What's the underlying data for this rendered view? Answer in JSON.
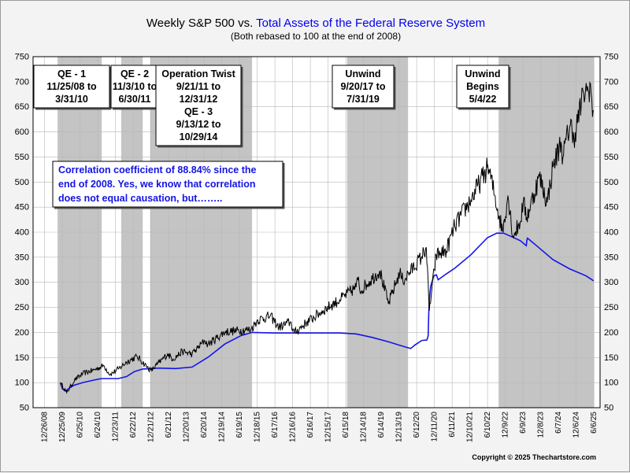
{
  "title": {
    "part1": "Weekly S&P 500 vs. ",
    "part2": "Total Assets of the Federal Reserve System"
  },
  "subtitle": "(Both rebased to 100 at the end of 2008)",
  "copyright": "Copyright © 2025 Thechartstore.com",
  "colors": {
    "sp500": "#000000",
    "fed": "#1414e6",
    "shade": "#c4c4c4",
    "plot_bg": "#ffffff"
  },
  "chart_data": {
    "type": "line",
    "title": "Weekly S&P 500 vs. Total Assets of the Federal Reserve System",
    "subtitle": "(Both rebased to 100 at the end of 2008)",
    "ylim": [
      50,
      750
    ],
    "yticks": [
      50,
      100,
      150,
      200,
      250,
      300,
      350,
      400,
      450,
      500,
      550,
      600,
      650,
      700,
      750
    ],
    "xlim": [
      "2008-02-26",
      "2025-06-06"
    ],
    "xtick_labels": [
      "12/26/08",
      "12/25/09",
      "6/25/10",
      "6/24/10",
      "12/23/11",
      "6/22/12",
      "12/21/12",
      "6/21/12",
      "12/20/13",
      "6/20/14",
      "12/19/14",
      "6/19/15",
      "12/18/15",
      "6/17/16",
      "12/16/16",
      "6/16/17",
      "12/15/17",
      "6/15/18",
      "12/14/18",
      "6/14/19",
      "12/13/19",
      "6/12/20",
      "12/11/20",
      "6/11/21",
      "12/10/21",
      "6/10/22",
      "12/9/22",
      "6/9/23",
      "12/8/23",
      "6/7/24",
      "12/6/24",
      "6/6/25"
    ],
    "shaded_periods": [
      {
        "label_lines": [
          "QE - 1",
          "11/25/08 to",
          "3/31/10"
        ],
        "start": "2008-11-25",
        "end": "2010-03-31"
      },
      {
        "label_lines": [
          "QE - 2",
          "11/3/10 to",
          "6/30/11"
        ],
        "start": "2010-11-03",
        "end": "2011-06-30"
      },
      {
        "label_lines": [
          "Operation Twist",
          "9/21/11 to",
          "12/31/12",
          "QE - 3",
          "9/13/12 to",
          "10/29/14"
        ],
        "start": "2011-09-21",
        "end": "2014-10-29"
      },
      {
        "label_lines": [
          "Unwind",
          "9/20/17 to",
          "7/31/19"
        ],
        "start": "2017-09-20",
        "end": "2019-07-31"
      },
      {
        "label_lines": [
          "Unwind",
          "Begins",
          "5/4/22"
        ],
        "start": "2022-05-04",
        "end": "2025-03-31"
      }
    ],
    "annotation": [
      "Correlation coefficient of 88.84% since the",
      "end of 2008. Yes, we know that correlation",
      "does not equal causation, but…….."
    ],
    "series": [
      {
        "name": "S&P 500",
        "points": [
          [
            "2008-12-26",
            100
          ],
          [
            "2009-03-06",
            80
          ],
          [
            "2009-06-01",
            105
          ],
          [
            "2009-09-01",
            118
          ],
          [
            "2009-12-31",
            125
          ],
          [
            "2010-04-23",
            134
          ],
          [
            "2010-07-02",
            116
          ],
          [
            "2010-10-01",
            127
          ],
          [
            "2010-12-31",
            141
          ],
          [
            "2011-04-29",
            152
          ],
          [
            "2011-08-19",
            131
          ],
          [
            "2011-10-03",
            124
          ],
          [
            "2011-12-30",
            140
          ],
          [
            "2012-04-02",
            157
          ],
          [
            "2012-06-01",
            147
          ],
          [
            "2012-09-14",
            162
          ],
          [
            "2012-12-31",
            157
          ],
          [
            "2013-05-20",
            184
          ],
          [
            "2013-06-24",
            176
          ],
          [
            "2013-12-31",
            201
          ],
          [
            "2014-04-11",
            203
          ],
          [
            "2014-10-15",
            206
          ],
          [
            "2014-12-31",
            225
          ],
          [
            "2015-05-20",
            233
          ],
          [
            "2015-08-25",
            210
          ],
          [
            "2015-12-31",
            221
          ],
          [
            "2016-02-11",
            199
          ],
          [
            "2016-06-27",
            220
          ],
          [
            "2016-12-30",
            244
          ],
          [
            "2017-06-30",
            265
          ],
          [
            "2017-12-29",
            290
          ],
          [
            "2018-01-26",
            311
          ],
          [
            "2018-02-09",
            283
          ],
          [
            "2018-09-21",
            323
          ],
          [
            "2018-12-24",
            257
          ],
          [
            "2019-04-30",
            320
          ],
          [
            "2019-06-03",
            303
          ],
          [
            "2019-12-31",
            351
          ],
          [
            "2020-02-19",
            370
          ],
          [
            "2020-03-23",
            243
          ],
          [
            "2020-06-08",
            354
          ],
          [
            "2020-09-30",
            363
          ],
          [
            "2020-12-31",
            412
          ],
          [
            "2021-06-30",
            465
          ],
          [
            "2021-12-31",
            528
          ],
          [
            "2022-01-03",
            535
          ],
          [
            "2022-06-17",
            402
          ],
          [
            "2022-08-16",
            473
          ],
          [
            "2022-10-12",
            392
          ],
          [
            "2022-12-30",
            420
          ],
          [
            "2023-02-02",
            460
          ],
          [
            "2023-03-13",
            430
          ],
          [
            "2023-07-31",
            511
          ],
          [
            "2023-10-27",
            459
          ],
          [
            "2023-12-29",
            530
          ],
          [
            "2024-03-28",
            580
          ],
          [
            "2024-04-19",
            550
          ],
          [
            "2024-07-16",
            625
          ],
          [
            "2024-08-05",
            578
          ],
          [
            "2024-12-06",
            677
          ],
          [
            "2025-01-24",
            683
          ],
          [
            "2025-02-19",
            696
          ],
          [
            "2025-03-14",
            630
          ],
          [
            "2025-03-28",
            642
          ]
        ]
      },
      {
        "name": "Total Assets of the Federal Reserve System",
        "points": [
          [
            "2008-12-26",
            100
          ],
          [
            "2009-01-16",
            88
          ],
          [
            "2009-02-20",
            83
          ],
          [
            "2009-04-10",
            90
          ],
          [
            "2009-06-01",
            95
          ],
          [
            "2009-09-01",
            100
          ],
          [
            "2009-12-31",
            105
          ],
          [
            "2010-03-31",
            108
          ],
          [
            "2010-09-30",
            108
          ],
          [
            "2010-12-31",
            112
          ],
          [
            "2011-03-31",
            122
          ],
          [
            "2011-06-30",
            127
          ],
          [
            "2011-12-31",
            129
          ],
          [
            "2012-06-30",
            128
          ],
          [
            "2012-12-31",
            131
          ],
          [
            "2013-06-30",
            151
          ],
          [
            "2013-12-31",
            177
          ],
          [
            "2014-06-30",
            194
          ],
          [
            "2014-10-29",
            200
          ],
          [
            "2015-06-30",
            199
          ],
          [
            "2016-06-30",
            199
          ],
          [
            "2017-06-30",
            199
          ],
          [
            "2017-12-31",
            197
          ],
          [
            "2018-06-30",
            190
          ],
          [
            "2018-12-31",
            181
          ],
          [
            "2019-06-30",
            171
          ],
          [
            "2019-08-30",
            168
          ],
          [
            "2019-10-15",
            175
          ],
          [
            "2019-12-31",
            184
          ],
          [
            "2020-02-26",
            185
          ],
          [
            "2020-03-11",
            193
          ],
          [
            "2020-03-18",
            240
          ],
          [
            "2020-03-25",
            268
          ],
          [
            "2020-04-08",
            292
          ],
          [
            "2020-05-13",
            313
          ],
          [
            "2020-06-10",
            315
          ],
          [
            "2020-06-30",
            305
          ],
          [
            "2020-09-30",
            317
          ],
          [
            "2020-12-31",
            328
          ],
          [
            "2021-06-30",
            355
          ],
          [
            "2021-12-31",
            389
          ],
          [
            "2022-04-13",
            398
          ],
          [
            "2022-06-30",
            398
          ],
          [
            "2022-12-31",
            383
          ],
          [
            "2023-03-08",
            373
          ],
          [
            "2023-03-15",
            385
          ],
          [
            "2023-03-22",
            388
          ],
          [
            "2023-06-30",
            373
          ],
          [
            "2023-12-31",
            345
          ],
          [
            "2024-06-30",
            327
          ],
          [
            "2024-12-31",
            313
          ],
          [
            "2025-03-26",
            303
          ]
        ]
      }
    ]
  }
}
